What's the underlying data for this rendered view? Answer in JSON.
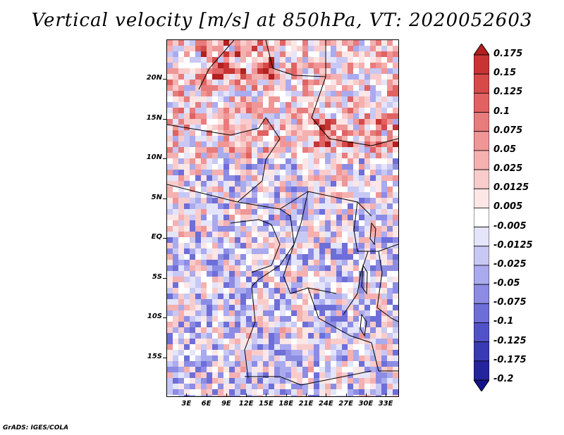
{
  "title": "Vertical velocity [m/s] at 850hPa, VT: 2020052603",
  "footer": "GrADS: IGES/COLA",
  "map": {
    "variable": "vertical velocity",
    "units": "m/s",
    "level": "850hPa",
    "lat_range": [
      -20,
      25
    ],
    "lon_range": [
      0,
      35
    ],
    "lat_ticks": [
      "20N",
      "15N",
      "10N",
      "5N",
      "EQ",
      "5S",
      "10S",
      "15S"
    ],
    "lon_ticks": [
      "3E",
      "6E",
      "9E",
      "12E",
      "15E",
      "18E",
      "21E",
      "24E",
      "27E",
      "30E",
      "33E"
    ]
  },
  "colorbar": {
    "levels": [
      "0.175",
      "0.15",
      "0.125",
      "0.1",
      "0.075",
      "0.05",
      "0.025",
      "0.0125",
      "0.005",
      "-0.005",
      "-0.0125",
      "-0.025",
      "-0.05",
      "-0.075",
      "-0.1",
      "-0.125",
      "-0.175",
      "-0.2"
    ],
    "colors": [
      "#b22020",
      "#c83434",
      "#d64a4a",
      "#e06262",
      "#e87c7c",
      "#f09696",
      "#f5b0b0",
      "#f9cccc",
      "#fce6e6",
      "#ffffff",
      "#e4e4fa",
      "#c8c8f4",
      "#aaaaee",
      "#8c8ce4",
      "#6e6ed8",
      "#5252c8",
      "#3a3ab4",
      "#24249c",
      "#14148a"
    ]
  }
}
